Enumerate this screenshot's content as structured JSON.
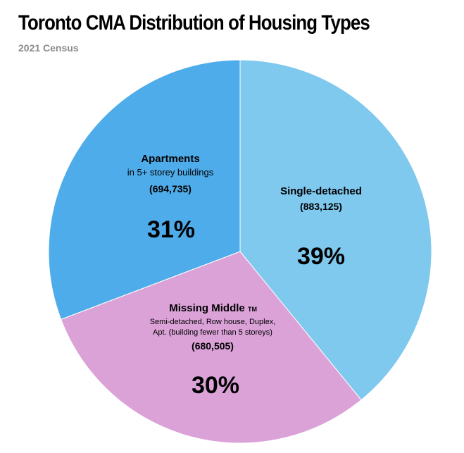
{
  "chart_data": {
    "type": "pie",
    "title": "Toronto CMA Distribution of Housing Types",
    "subtitle": "2021 Census",
    "slices": [
      {
        "label": "Single-detached",
        "count": "(883,125)",
        "percent_label": "39%",
        "value": 883125,
        "color": "#7fc8ee"
      },
      {
        "label": "Missing Middle",
        "trademark": "TM",
        "description_lines": [
          "Semi-detached, Row house, Duplex,",
          "Apt. (building fewer than 5 storeys)"
        ],
        "count": "(680,505)",
        "percent_label": "30%",
        "value": 680505,
        "color": "#dba2d8"
      },
      {
        "label": "Apartments",
        "description_lines": [
          "in 5+ storey buildings"
        ],
        "count": "(694,735)",
        "percent_label": "31%",
        "value": 694735,
        "color": "#4eacea"
      }
    ]
  }
}
